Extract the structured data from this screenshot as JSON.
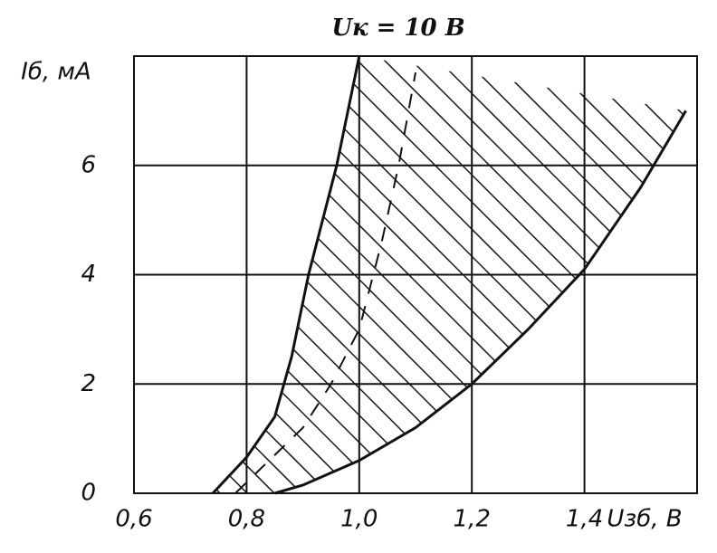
{
  "chart_data": {
    "type": "line",
    "title": "Uк = 10 В",
    "y_label": "Iб, мА",
    "x_label": "Uзб, В",
    "xlim": [
      0.6,
      1.6
    ],
    "ylim": [
      0,
      8
    ],
    "xticks": [
      {
        "value": 0.6,
        "label": "0,6"
      },
      {
        "value": 0.8,
        "label": "0,8"
      },
      {
        "value": 1.0,
        "label": "1,0"
      },
      {
        "value": 1.2,
        "label": "1,2"
      },
      {
        "value": 1.4,
        "label": "1,4"
      }
    ],
    "yticks": [
      0,
      2,
      4,
      6
    ],
    "grid": true,
    "hatch": true,
    "series": [
      {
        "color": "#111111",
        "style": "solid",
        "x": [
          0.74,
          0.8,
          0.85,
          0.88,
          0.91,
          0.96,
          1.0
        ],
        "values": [
          0,
          0.66,
          1.4,
          2.5,
          4,
          6,
          8
        ]
      },
      {
        "color": "#111111",
        "style": "solid",
        "x": [
          0.85,
          0.9,
          1.0,
          1.1,
          1.2,
          1.3,
          1.4,
          1.5,
          1.58
        ],
        "values": [
          0,
          0.15,
          0.6,
          1.2,
          2.0,
          3.0,
          4.1,
          5.6,
          7.0
        ]
      },
      {
        "color": "#111111",
        "style": "dashed",
        "x": [
          0.78,
          0.85,
          0.9,
          0.95,
          1.0,
          1.04,
          1.07,
          1.1
        ],
        "values": [
          0,
          0.7,
          1.2,
          2.0,
          3.0,
          4.6,
          6.0,
          7.7
        ]
      }
    ]
  }
}
